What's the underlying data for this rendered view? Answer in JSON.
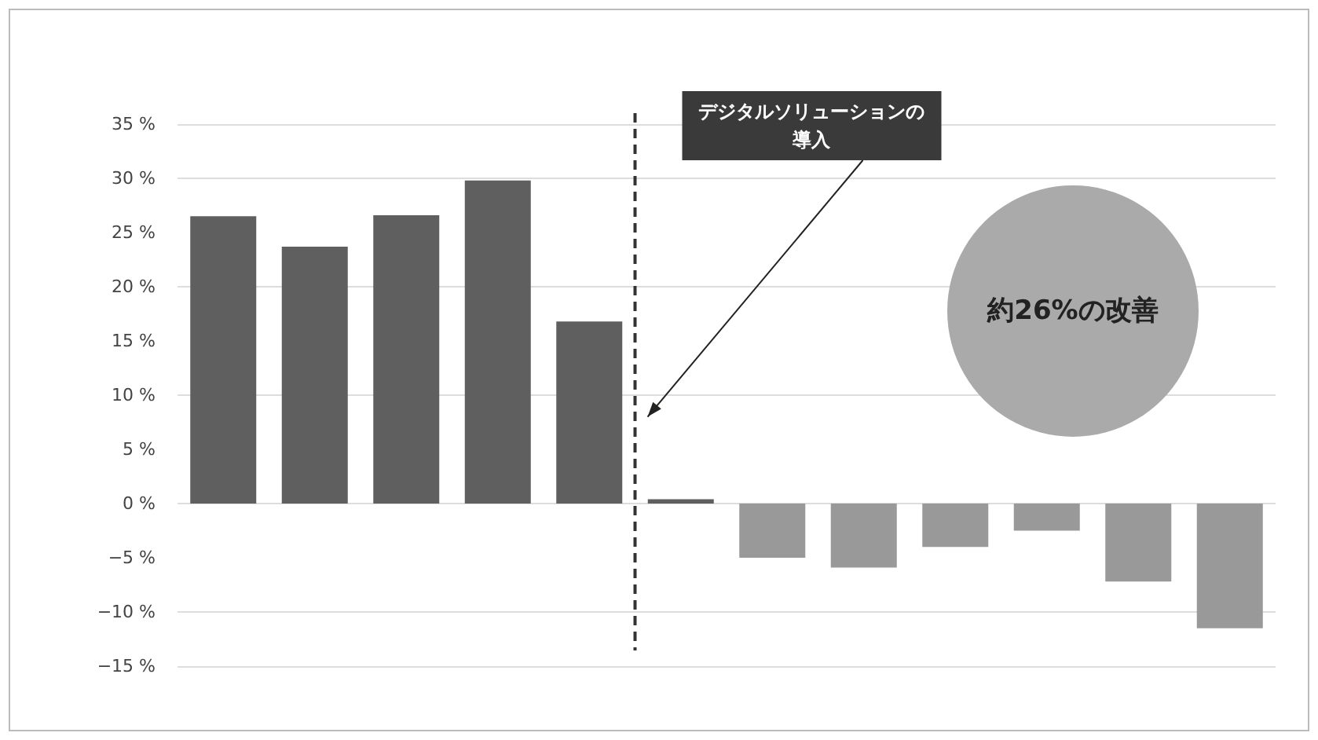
{
  "chart_data": {
    "type": "bar",
    "categories": [
      null,
      null,
      null,
      null,
      null,
      null,
      null,
      null,
      null,
      null,
      null,
      null
    ],
    "values": [
      26.5,
      23.7,
      26.6,
      29.8,
      16.8,
      0.4,
      -5,
      -5.9,
      -4,
      -2.5,
      -7.2,
      -11.5
    ],
    "colors": [
      "#5f5f5f",
      "#5f5f5f",
      "#5f5f5f",
      "#5f5f5f",
      "#5f5f5f",
      "#5f5f5f",
      "#999999",
      "#999999",
      "#999999",
      "#999999",
      "#999999",
      "#999999"
    ],
    "ylim": [
      -15,
      35
    ],
    "yticks": [
      {
        "value": -15,
        "label": "−15 %"
      },
      {
        "value": -10,
        "label": "−10 %"
      },
      {
        "value": -5,
        "label": "−5 %"
      },
      {
        "value": 0,
        "label": "0 %"
      },
      {
        "value": 5,
        "label": "5 %"
      },
      {
        "value": 10,
        "label": "10 %"
      },
      {
        "value": 15,
        "label": "15 %"
      },
      {
        "value": 20,
        "label": "20 %"
      },
      {
        "value": 25,
        "label": "25 %"
      },
      {
        "value": 30,
        "label": "30 %"
      },
      {
        "value": 35,
        "label": "35 %"
      }
    ],
    "tick_labels": "y",
    "grid": "y",
    "annotations": [
      "デジタルソリューションの導入",
      "約26%の改善"
    ]
  }
}
